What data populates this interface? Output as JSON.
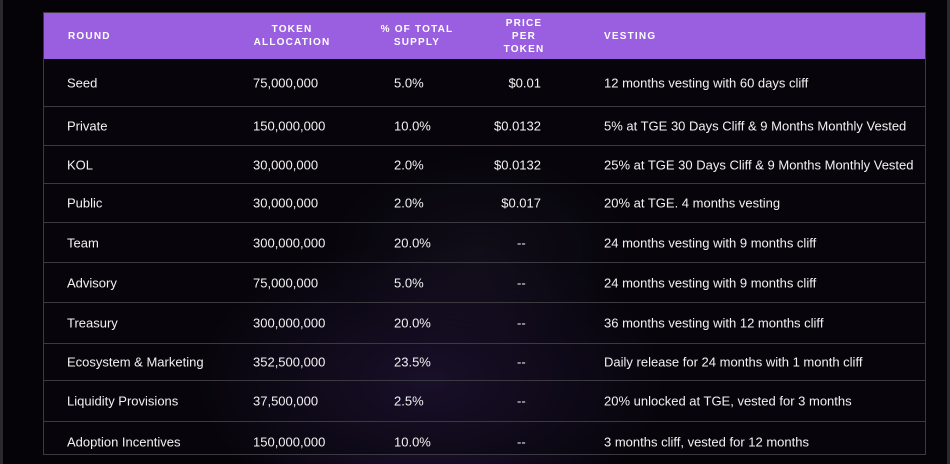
{
  "table": {
    "headers": {
      "round": "ROUND",
      "allocation_line1": "TOKEN",
      "allocation_line2": "ALLOCATION",
      "supply_line1": "% OF TOTAL",
      "supply_line2": "SUPPLY",
      "price_line1": "PRICE PER",
      "price_line2": "TOKEN",
      "vesting": "VESTING"
    },
    "rows": [
      {
        "round": "Seed",
        "allocation": "75,000,000",
        "supply": "5.0%",
        "price": "$0.01",
        "vesting": "12 months vesting with 60 days cliff"
      },
      {
        "round": "Private",
        "allocation": "150,000,000",
        "supply": "10.0%",
        "price": "$0.0132",
        "vesting": "5% at TGE 30 Days Cliff & 9 Months Monthly Vested"
      },
      {
        "round": "KOL",
        "allocation": "30,000,000",
        "supply": "2.0%",
        "price": "$0.0132",
        "vesting": "25% at TGE 30 Days Cliff & 9 Months Monthly Vested"
      },
      {
        "round": "Public",
        "allocation": "30,000,000",
        "supply": "2.0%",
        "price": "$0.017",
        "vesting": "20% at TGE. 4 months vesting"
      },
      {
        "round": "Team",
        "allocation": "300,000,000",
        "supply": "20.0%",
        "price": "--",
        "vesting": "24 months vesting with 9 months cliff"
      },
      {
        "round": "Advisory",
        "allocation": "75,000,000",
        "supply": "5.0%",
        "price": "--",
        "vesting": "24 months vesting with 9 months cliff"
      },
      {
        "round": "Treasury",
        "allocation": "300,000,000",
        "supply": "20.0%",
        "price": "--",
        "vesting": "36 months vesting with 12 months cliff"
      },
      {
        "round": "Ecosystem & Marketing",
        "allocation": "352,500,000",
        "supply": "23.5%",
        "price": "--",
        "vesting": "Daily release for 24 months with 1 month cliff"
      },
      {
        "round": "Liquidity Provisions",
        "allocation": "37,500,000",
        "supply": "2.5%",
        "price": "--",
        "vesting": "20% unlocked at TGE, vested for 3 months"
      },
      {
        "round": "Adoption Incentives",
        "allocation": "150,000,000",
        "supply": "10.0%",
        "price": "--",
        "vesting": "3 months cliff, vested for 12 months"
      }
    ]
  },
  "colors": {
    "header_bg": "#9a5fe0",
    "background": "#050308",
    "row_border": "#3a3a40",
    "text": "#f2f2f2"
  }
}
